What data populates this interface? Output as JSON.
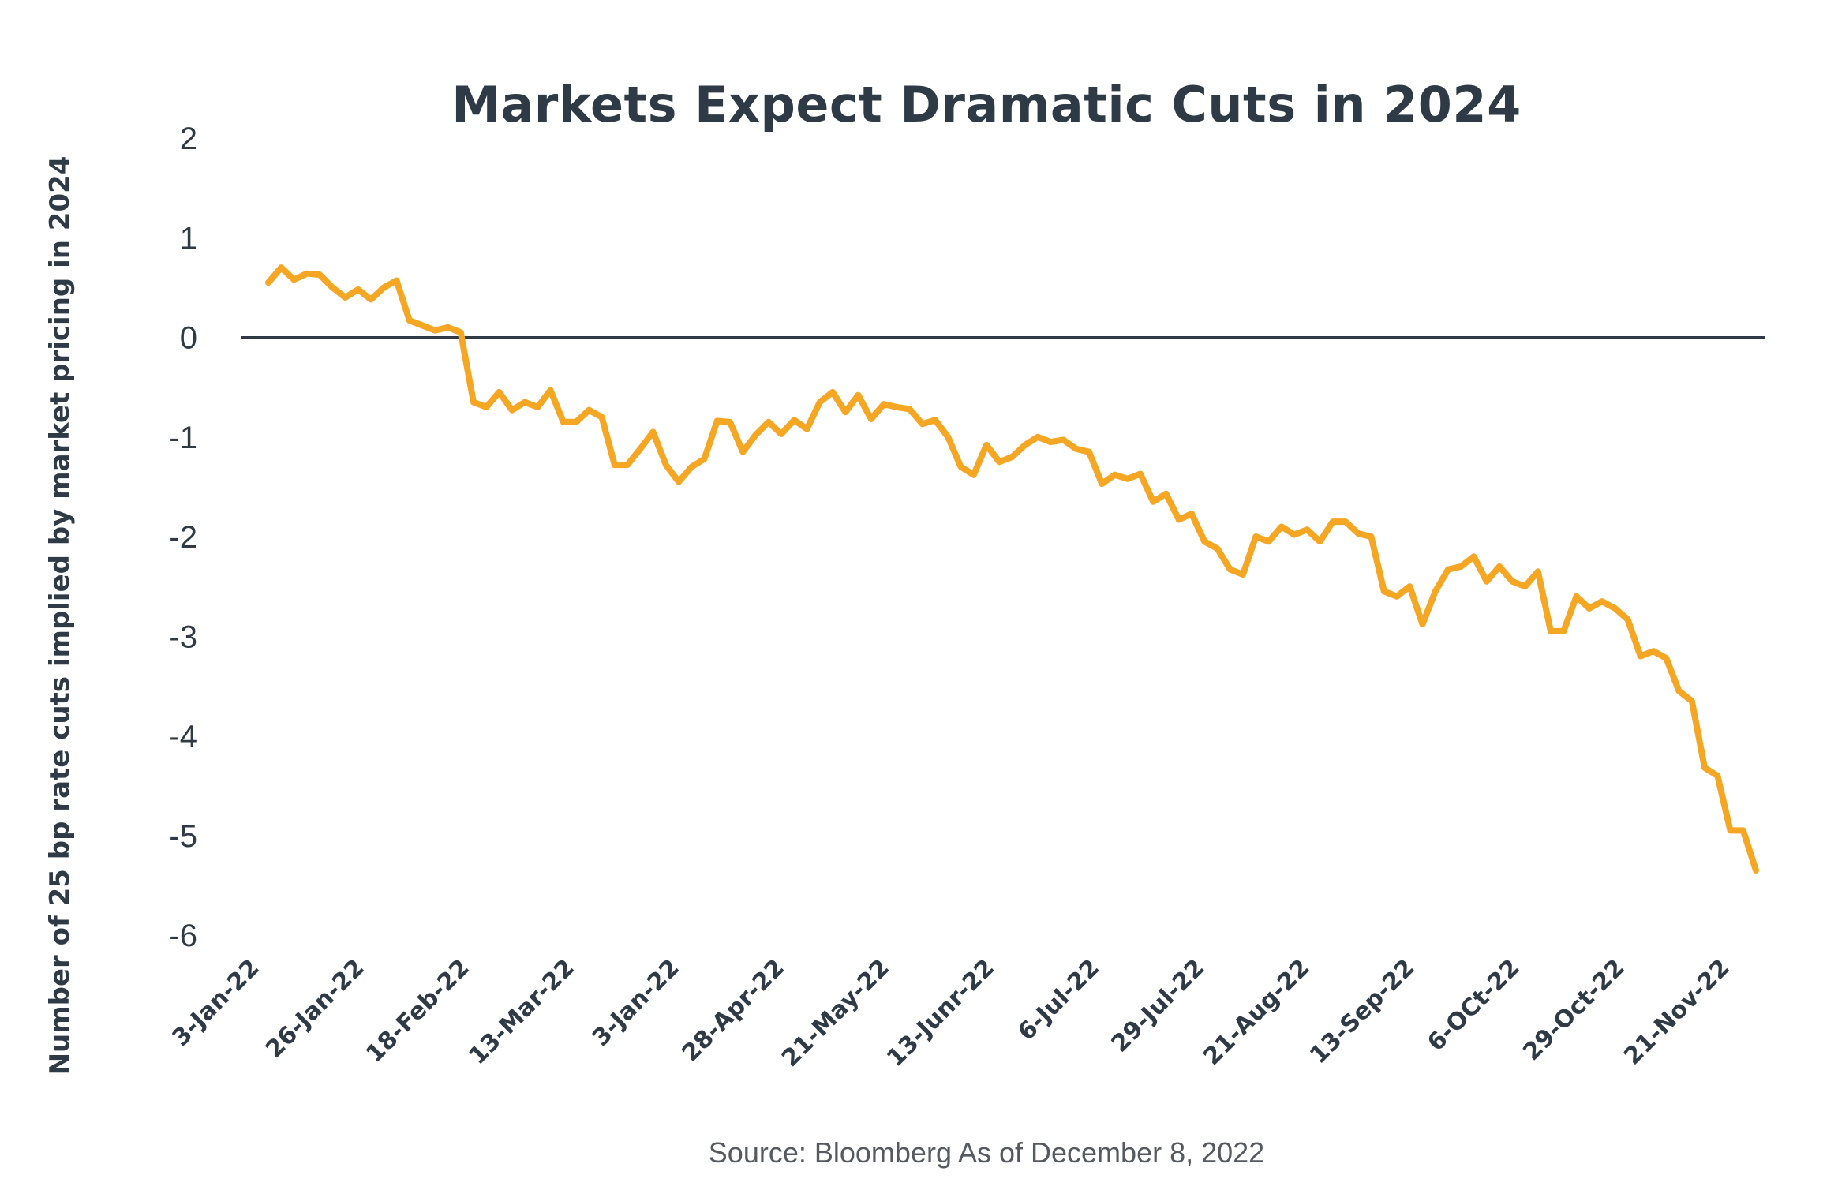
{
  "chart_data": {
    "type": "line",
    "title": "Markets Expect Dramatic Cuts in 2024",
    "ylabel": "Number of 25 bp rate cuts implied by market pricing in 2024",
    "xlabel": "",
    "source": "Source: Bloomberg As of December 8, 2022",
    "ylim": [
      -6,
      2
    ],
    "yticks": [
      2,
      1,
      0,
      -1,
      -2,
      -3,
      -4,
      -5,
      -6
    ],
    "x_tick_labels": [
      "3-Jan-22",
      "26-Jan-22",
      "18-Feb-22",
      "13-Mar-22",
      "3-Jan-22",
      "28-Apr-22",
      "21-May-22",
      "13-Junr-22",
      "6-Jul-22",
      "29-Jul-22",
      "21-Aug-22",
      "13-Sep-22",
      "6-OCt-22",
      "29-Oct-22",
      "21-Nov-22"
    ],
    "zero_line": true,
    "grid": false,
    "colors": {
      "series": "#f5a623",
      "zero_line": "#2e3a45",
      "text": "#2e3a45"
    },
    "series": [
      {
        "values": [
          0.55,
          0.7,
          0.58,
          0.64,
          0.63,
          0.5,
          0.4,
          0.48,
          0.38,
          0.5,
          0.57,
          0.17,
          0.12,
          0.07,
          0.1,
          0.05,
          -0.65,
          -0.7,
          -0.55,
          -0.73,
          -0.65,
          -0.7,
          -0.53,
          -0.85,
          -0.85,
          -0.73,
          -0.8,
          -1.28,
          -1.28,
          -1.12,
          -0.95,
          -1.28,
          -1.45,
          -1.3,
          -1.22,
          -0.84,
          -0.85,
          -1.15,
          -0.98,
          -0.85,
          -0.97,
          -0.83,
          -0.92,
          -0.65,
          -0.55,
          -0.75,
          -0.58,
          -0.82,
          -0.67,
          -0.7,
          -0.72,
          -0.87,
          -0.83,
          -1.0,
          -1.3,
          -1.38,
          -1.08,
          -1.25,
          -1.2,
          -1.08,
          -1.0,
          -1.05,
          -1.03,
          -1.12,
          -1.15,
          -1.47,
          -1.38,
          -1.42,
          -1.37,
          -1.65,
          -1.57,
          -1.83,
          -1.77,
          -2.05,
          -2.12,
          -2.33,
          -2.38,
          -2.0,
          -2.05,
          -1.9,
          -1.98,
          -1.93,
          -2.05,
          -1.85,
          -1.85,
          -1.97,
          -2.0,
          -2.55,
          -2.6,
          -2.5,
          -2.88,
          -2.55,
          -2.33,
          -2.3,
          -2.2,
          -2.45,
          -2.3,
          -2.45,
          -2.5,
          -2.35,
          -2.95,
          -2.95,
          -2.6,
          -2.72,
          -2.65,
          -2.72,
          -2.83,
          -3.2,
          -3.15,
          -3.22,
          -3.55,
          -3.65,
          -4.32,
          -4.4,
          -4.95,
          -4.95,
          -5.35
        ]
      }
    ]
  }
}
